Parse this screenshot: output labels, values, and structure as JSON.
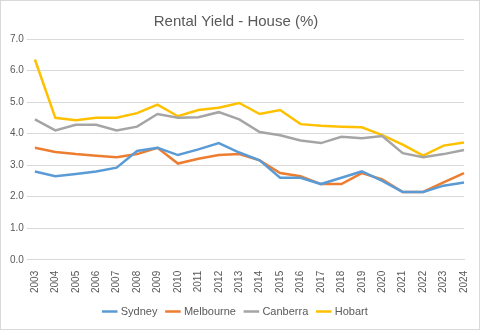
{
  "chart_data": {
    "type": "line",
    "title": "Rental Yield - House (%)",
    "categories": [
      "2003",
      "2004",
      "2005",
      "2006",
      "2007",
      "2008",
      "2009",
      "2010",
      "2011",
      "2012",
      "2013",
      "2014",
      "2015",
      "2016",
      "2017",
      "2018",
      "2019",
      "2020",
      "2021",
      "2022",
      "2023",
      "2024"
    ],
    "series": [
      {
        "name": "Sydney",
        "color": "#5B9BD5",
        "values": [
          2.8,
          2.65,
          2.72,
          2.8,
          2.92,
          3.45,
          3.55,
          3.32,
          3.5,
          3.7,
          3.4,
          3.15,
          2.6,
          2.6,
          2.4,
          2.6,
          2.8,
          2.5,
          2.15,
          2.15,
          2.35,
          2.45
        ]
      },
      {
        "name": "Melbourne",
        "color": "#ED7D31",
        "values": [
          3.55,
          3.42,
          3.35,
          3.3,
          3.25,
          3.35,
          3.55,
          3.05,
          3.2,
          3.32,
          3.35,
          3.15,
          2.75,
          2.65,
          2.4,
          2.4,
          2.75,
          2.55,
          2.15,
          2.15,
          2.45,
          2.75
        ]
      },
      {
        "name": "Canberra",
        "color": "#A5A5A5",
        "values": [
          4.45,
          4.1,
          4.28,
          4.28,
          4.1,
          4.22,
          4.62,
          4.5,
          4.52,
          4.68,
          4.45,
          4.05,
          3.95,
          3.78,
          3.7,
          3.9,
          3.85,
          3.92,
          3.38,
          3.25,
          3.35,
          3.48
        ]
      },
      {
        "name": "Hobart",
        "color": "#FFC000",
        "values": [
          6.35,
          4.5,
          4.42,
          4.5,
          4.5,
          4.65,
          4.92,
          4.55,
          4.75,
          4.82,
          4.97,
          4.62,
          4.75,
          4.3,
          4.25,
          4.22,
          4.2,
          3.95,
          3.65,
          3.3,
          3.62,
          3.72
        ]
      }
    ],
    "ylim": [
      0,
      7
    ],
    "yticks": [
      {
        "value": 0,
        "label": "0.0"
      },
      {
        "value": 1,
        "label": "1.0"
      },
      {
        "value": 2,
        "label": "2.0"
      },
      {
        "value": 3,
        "label": "3.0"
      },
      {
        "value": 4,
        "label": "4.0"
      },
      {
        "value": 5,
        "label": "5.0"
      },
      {
        "value": 6,
        "label": "6.0"
      },
      {
        "value": 7,
        "label": "7.0"
      }
    ],
    "grid": true,
    "legend": "bottom",
    "marker": "none"
  }
}
